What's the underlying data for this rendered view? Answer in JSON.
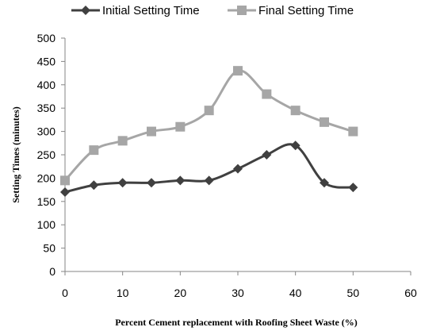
{
  "chart_data": {
    "type": "line",
    "title": "",
    "xlabel": "Percent Cement replacement with Roofing Sheet Waste (%)",
    "ylabel": "Setting Times (minutes)",
    "xlim": [
      0,
      60
    ],
    "ylim": [
      0,
      500
    ],
    "x_ticks": [
      "0",
      "10",
      "20",
      "30",
      "40",
      "50",
      "60"
    ],
    "y_ticks": [
      "0",
      "50",
      "100",
      "150",
      "200",
      "250",
      "300",
      "350",
      "400",
      "450",
      "500"
    ],
    "grid": false,
    "legend_position": "top",
    "series": [
      {
        "name": "Initial Setting Time",
        "marker": "diamond",
        "color": "#404040",
        "x": [
          0,
          5,
          10,
          15,
          20,
          25,
          30,
          35,
          40,
          45,
          50
        ],
        "y": [
          170,
          185,
          190,
          190,
          195,
          195,
          220,
          250,
          270,
          190,
          180
        ]
      },
      {
        "name": "Final Setting Time",
        "marker": "square",
        "color": "#a6a6a6",
        "x": [
          0,
          5,
          10,
          15,
          20,
          25,
          30,
          35,
          40,
          45,
          50
        ],
        "y": [
          195,
          260,
          280,
          300,
          310,
          345,
          430,
          380,
          345,
          320,
          300
        ]
      }
    ]
  }
}
